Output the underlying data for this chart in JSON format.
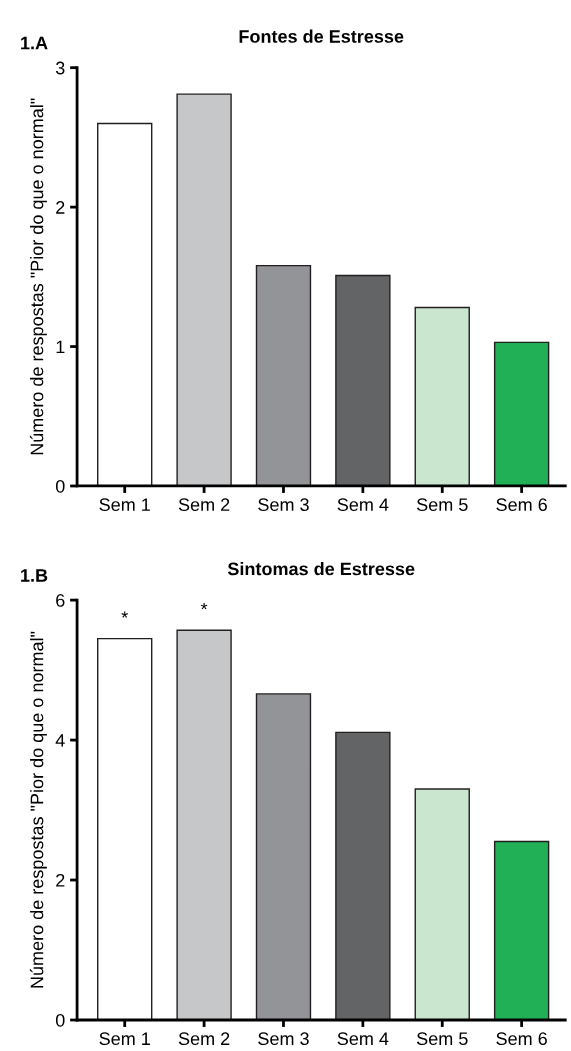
{
  "chart_data": [
    {
      "type": "bar",
      "title": "Fontes de Estresse",
      "ylabel": "Número de respostas ʺPior do que o normalʺ",
      "categories": [
        "Sem 1",
        "Sem 2",
        "Sem 3",
        "Sem 4",
        "Sem 5",
        "Sem 6"
      ],
      "values": [
        2.6,
        2.81,
        1.58,
        1.51,
        1.28,
        1.03
      ],
      "colors": [
        "#ffffff",
        "#c6c7c9",
        "#939498",
        "#636466",
        "#cae6cf",
        "#22b057"
      ],
      "ylim": [
        0,
        3
      ],
      "yticks": [
        0,
        1,
        2,
        3
      ],
      "grid": false,
      "legend": false,
      "annotations": [
        "1.A"
      ]
    },
    {
      "type": "bar",
      "title": "Sintomas de Estresse",
      "ylabel": "Número de respostas ʺPior do que o normalʺ",
      "categories": [
        "Sem 1",
        "Sem 2",
        "Sem 3",
        "Sem 4",
        "Sem 5",
        "Sem 6"
      ],
      "values": [
        5.45,
        5.57,
        4.66,
        4.11,
        3.3,
        2.55
      ],
      "colors": [
        "#ffffff",
        "#c6c7c9",
        "#939498",
        "#636466",
        "#cae6cf",
        "#22b057"
      ],
      "ylim": [
        0,
        6
      ],
      "yticks": [
        0,
        2,
        4,
        6
      ],
      "grid": false,
      "legend": false,
      "annotations": [
        "1.B",
        {
          "text": "*",
          "x": "Sem 1",
          "y": 5.45
        },
        {
          "text": "*",
          "x": "Sem 2",
          "y": 5.57
        }
      ]
    }
  ]
}
